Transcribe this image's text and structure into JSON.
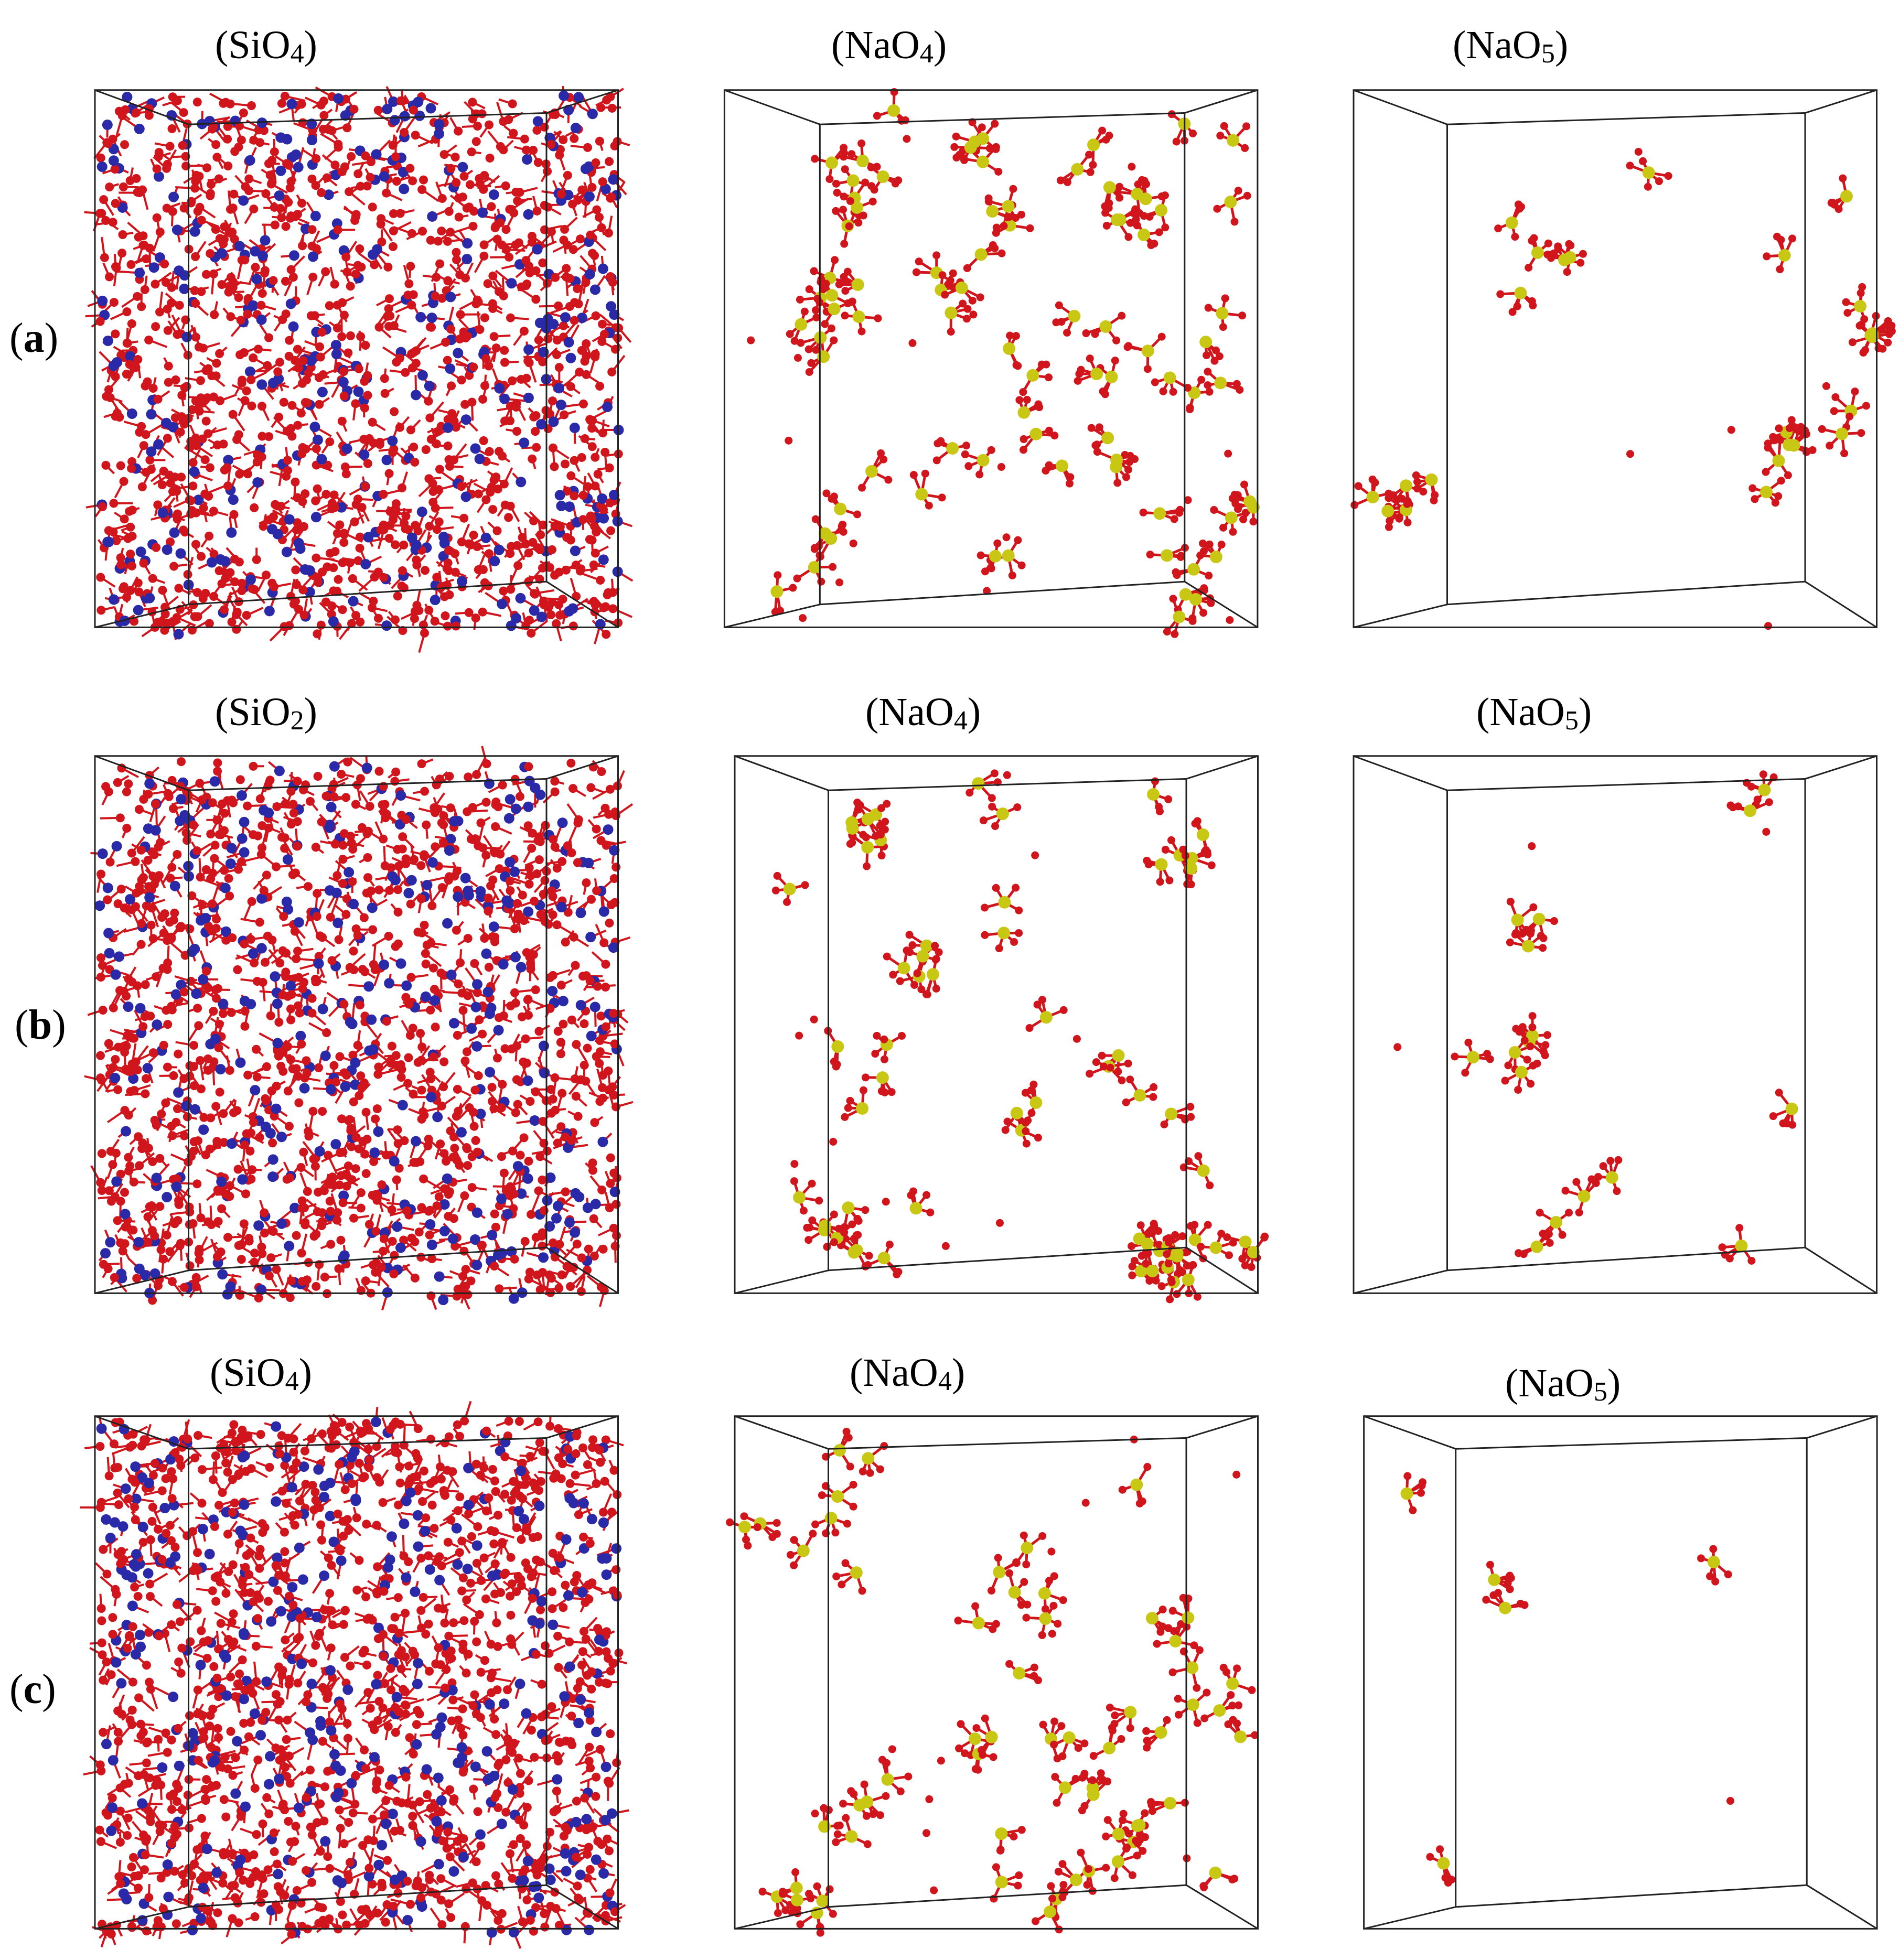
{
  "rows": [
    {
      "label": "a",
      "panels": [
        {
          "formula": "SiO",
          "subscript": "4",
          "kind": "network"
        },
        {
          "formula": "NaO",
          "subscript": "4",
          "kind": "na4",
          "units": 80
        },
        {
          "formula": "NaO",
          "subscript": "5",
          "kind": "na5",
          "units": 24
        }
      ]
    },
    {
      "label": "b",
      "panels": [
        {
          "formula": "SiO",
          "subscript": "2",
          "kind": "network"
        },
        {
          "formula": "NaO",
          "subscript": "4",
          "kind": "na4",
          "units": 60
        },
        {
          "formula": "NaO",
          "subscript": "5",
          "kind": "na5",
          "units": 16
        }
      ]
    },
    {
      "label": "c",
      "panels": [
        {
          "formula": "SiO",
          "subscript": "4",
          "kind": "network"
        },
        {
          "formula": "NaO",
          "subscript": "4",
          "kind": "na4",
          "units": 58
        },
        {
          "formula": "NaO",
          "subscript": "5",
          "kind": "na5",
          "units": 5
        }
      ]
    }
  ],
  "colors": {
    "oxygen": "#d0161c",
    "silicon": "#2a2aa8",
    "sodium": "#c8c814",
    "box_edge": "#222222"
  }
}
